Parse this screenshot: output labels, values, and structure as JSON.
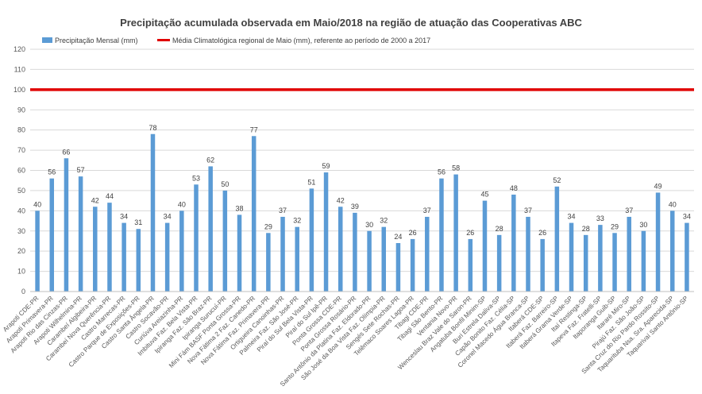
{
  "chart_data": {
    "type": "bar",
    "title": "Precipitação acumulada observada em Maio/2018 na região de atuação das Cooperativas ABC",
    "xlabel": "",
    "ylabel": "",
    "ylim": [
      0,
      120
    ],
    "yticks": [
      0,
      10,
      20,
      30,
      40,
      50,
      60,
      70,
      80,
      90,
      100,
      110,
      120
    ],
    "grid": true,
    "legend_position": "top-left",
    "categories": [
      "Arapoti CDE-PR",
      "Arapoti Primavera-PR",
      "Arapoti Rio das Cinzas-PR",
      "Arapoti Wilhelmina-PR",
      "Carambeí Algibeira-PR",
      "Carambeí Nova Querência-PR",
      "Castro Marrecas-PR",
      "Castro Parque de Exposições-PR",
      "Castro Santa Ângela-PR",
      "Castro Socavão-PR",
      "Curiúva Areiazinha-PR",
      "Imbituva Faz. Bela Vista-PR",
      "Ipiranga Faz. São Braz-PR",
      "Ipiranga Surucuí-PR",
      "Mini Fám BASF Ponta Grossa-PR",
      "Nova Fátima 2 Faz. Canedo-PR",
      "Nova Fátima Faz. Primavera-PR",
      "Ortigueira Canoinhas-PR",
      "Palmeira Faz. São José-PR",
      "Piraí do Sul Bela Vista-PR",
      "Piraí do Sul Ipê-PR",
      "Ponta Grossa CDE-PR",
      "Ponta Grossa Rosário-PR",
      "Santo Antônio da Platina Faz. Eldorado-PR",
      "São José da Boa Vista Faz. Olímpia-PR",
      "Sengés Sete Rochas-PR",
      "Telêmaco Soares Lagoa-PR",
      "Tibagi CDE-PR",
      "Tibagi São Bento-PR",
      "Ventania Novo-PR",
      "Wenceslau Braz Vale do Saron-PR",
      "Angatuba Bonfil Minim-SP",
      "Buri Estrela Daliva-SP",
      "Capão Bonito Faz. Célia-SP",
      "Coronel Macedo Água Branca-SP",
      "Itaberá CDE-SP",
      "Itaberá Faz. Barreiro-SP",
      "Itaberá Grama Verde-SP",
      "Itaí Restinga-SP",
      "Itapeva Faz. Fratelli-SP",
      "Itaporanga Guib-SP",
      "Itararé Miro-SP",
      "Pirajú Faz. São João-SP",
      "Santa Cruz do Rio Pardo Rossito-SP",
      "Taquarituba Nsa. Sra. Aparecida-SP",
      "Taquarivaí Santo Antônio-SP"
    ],
    "series": [
      {
        "name": "Precipitação Mensal (mm)",
        "color": "#5b9bd5",
        "values": [
          40,
          56,
          66,
          57,
          42,
          44,
          34,
          31,
          78,
          34,
          40,
          53,
          62,
          50,
          38,
          77,
          29,
          37,
          32,
          51,
          59,
          42,
          39,
          30,
          32,
          24,
          26,
          37,
          56,
          58,
          26,
          45,
          28,
          48,
          37,
          26,
          52,
          34,
          28,
          33,
          29,
          37,
          30,
          49,
          40,
          34
        ]
      }
    ],
    "reference_line": {
      "name": "Média Climatológica regional de Maio (mm), referente ao período de 2000 a 2017",
      "value": 100,
      "color": "#e00000"
    }
  }
}
